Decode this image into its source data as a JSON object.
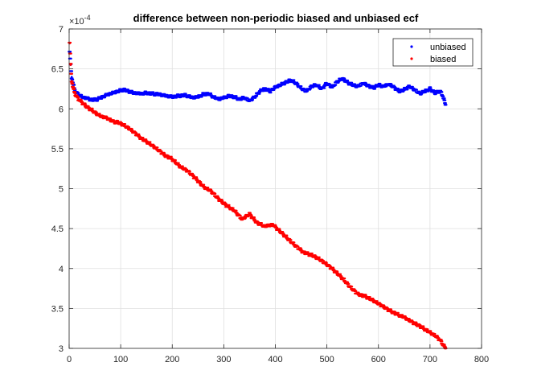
{
  "chart_data": {
    "type": "scatter",
    "title": "difference between non-periodic biased and unbiased ecf",
    "xlabel": "",
    "ylabel": "",
    "y_exponent_label": "×10",
    "y_exponent_power": "-4",
    "xlim": [
      0,
      800
    ],
    "ylim": [
      3,
      7
    ],
    "xticks": [
      0,
      100,
      200,
      300,
      400,
      500,
      600,
      700,
      800
    ],
    "yticks": [
      3,
      3.5,
      4,
      4.5,
      5,
      5.5,
      6,
      6.5,
      7
    ],
    "grid": true,
    "legend_position": "top-right",
    "series": [
      {
        "name": "unbiased",
        "color": "#0000ff",
        "x": [
          1,
          3,
          5,
          8,
          12,
          18,
          25,
          35,
          45,
          55,
          65,
          75,
          85,
          95,
          105,
          115,
          125,
          140,
          150,
          160,
          175,
          190,
          200,
          210,
          225,
          240,
          250,
          260,
          270,
          280,
          290,
          300,
          310,
          320,
          330,
          340,
          350,
          360,
          370,
          380,
          390,
          400,
          410,
          420,
          430,
          440,
          450,
          460,
          470,
          480,
          490,
          500,
          510,
          520,
          530,
          540,
          550,
          560,
          570,
          580,
          590,
          600,
          610,
          620,
          630,
          640,
          650,
          660,
          670,
          680,
          690,
          700,
          710,
          720,
          725,
          730
        ],
        "values": [
          6.7,
          6.55,
          6.4,
          6.3,
          6.22,
          6.18,
          6.15,
          6.13,
          6.11,
          6.12,
          6.15,
          6.18,
          6.2,
          6.22,
          6.24,
          6.22,
          6.2,
          6.19,
          6.2,
          6.19,
          6.18,
          6.16,
          6.15,
          6.16,
          6.17,
          6.14,
          6.15,
          6.18,
          6.19,
          6.15,
          6.12,
          6.14,
          6.16,
          6.15,
          6.12,
          6.14,
          6.1,
          6.15,
          6.22,
          6.25,
          6.22,
          6.27,
          6.3,
          6.33,
          6.36,
          6.32,
          6.26,
          6.22,
          6.28,
          6.3,
          6.25,
          6.32,
          6.27,
          6.34,
          6.38,
          6.33,
          6.3,
          6.28,
          6.32,
          6.29,
          6.26,
          6.3,
          6.28,
          6.31,
          6.27,
          6.22,
          6.24,
          6.28,
          6.24,
          6.19,
          6.22,
          6.25,
          6.2,
          6.22,
          6.16,
          6.05
        ]
      },
      {
        "name": "biased",
        "color": "#ff0000",
        "x": [
          1,
          3,
          5,
          8,
          12,
          18,
          25,
          35,
          45,
          55,
          65,
          75,
          85,
          95,
          105,
          115,
          125,
          140,
          155,
          170,
          185,
          200,
          215,
          230,
          245,
          260,
          275,
          290,
          305,
          320,
          335,
          350,
          365,
          380,
          395,
          410,
          425,
          440,
          455,
          470,
          485,
          500,
          515,
          530,
          545,
          560,
          575,
          590,
          605,
          620,
          635,
          650,
          665,
          680,
          695,
          710,
          720,
          730
        ],
        "values": [
          6.82,
          6.55,
          6.35,
          6.25,
          6.18,
          6.12,
          6.08,
          6.02,
          5.98,
          5.93,
          5.9,
          5.88,
          5.84,
          5.83,
          5.8,
          5.76,
          5.71,
          5.63,
          5.57,
          5.5,
          5.42,
          5.37,
          5.28,
          5.22,
          5.13,
          5.03,
          4.97,
          4.87,
          4.79,
          4.73,
          4.62,
          4.68,
          4.57,
          4.53,
          4.55,
          4.46,
          4.37,
          4.28,
          4.2,
          4.17,
          4.12,
          4.05,
          3.97,
          3.88,
          3.77,
          3.68,
          3.65,
          3.6,
          3.54,
          3.48,
          3.43,
          3.39,
          3.33,
          3.28,
          3.22,
          3.16,
          3.1,
          3.0
        ]
      }
    ]
  }
}
